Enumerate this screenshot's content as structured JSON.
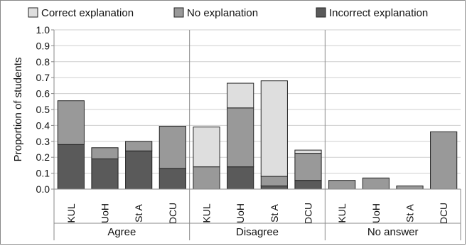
{
  "chart_data": {
    "type": "bar",
    "stacked": true,
    "ylabel": "Proportion of students",
    "ylim": [
      0,
      1.0
    ],
    "yticks": [
      "0.0",
      "0.1",
      "0.2",
      "0.3",
      "0.4",
      "0.5",
      "0.6",
      "0.7",
      "0.8",
      "0.9",
      "1.0"
    ],
    "grid": true,
    "legend_position": "top",
    "groups": [
      {
        "label": "Agree",
        "categories": [
          "KUL",
          "UoH",
          "St A",
          "DCU"
        ]
      },
      {
        "label": "Disagree",
        "categories": [
          "KUL",
          "UoH",
          "St A",
          "DCU"
        ]
      },
      {
        "label": "No answer",
        "categories": [
          "KUL",
          "UoH",
          "St A",
          "DCU"
        ]
      }
    ],
    "series": [
      {
        "name": "Incorrect explanation",
        "color": "#5a5a5a",
        "values": [
          0.28,
          0.19,
          0.24,
          0.13,
          0.0,
          0.14,
          0.02,
          0.055,
          0.0,
          0.0,
          0.0,
          0.0
        ]
      },
      {
        "name": "No explanation",
        "color": "#999999",
        "values": [
          0.275,
          0.07,
          0.06,
          0.265,
          0.14,
          0.37,
          0.06,
          0.17,
          0.055,
          0.07,
          0.02,
          0.36
        ]
      },
      {
        "name": "Correct explanation",
        "color": "#dedede",
        "values": [
          0.0,
          0.0,
          0.0,
          0.0,
          0.25,
          0.155,
          0.6,
          0.02,
          0.0,
          0.0,
          0.0,
          0.0
        ]
      }
    ],
    "legend_order": [
      "Correct explanation",
      "No explanation",
      "Incorrect explanation"
    ]
  }
}
